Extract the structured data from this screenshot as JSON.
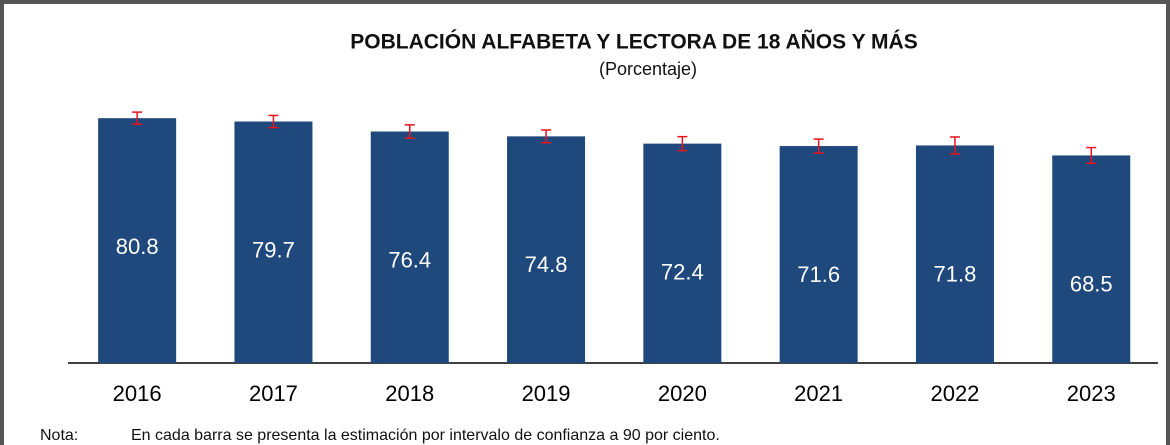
{
  "chart_data": {
    "type": "bar",
    "title": "POBLACIÓN ALFABETA Y LECTORA DE 18 AÑOS Y MÁS",
    "subtitle": "(Porcentaje)",
    "categories": [
      "2016",
      "2017",
      "2018",
      "2019",
      "2020",
      "2021",
      "2022",
      "2023"
    ],
    "values": [
      80.8,
      79.7,
      76.4,
      74.8,
      72.4,
      71.6,
      71.8,
      68.5
    ],
    "errors": [
      2.0,
      2.0,
      2.2,
      2.1,
      2.3,
      2.3,
      2.8,
      2.6
    ],
    "color": "#1f487c",
    "error_color": "#e8141c",
    "note_label": "Nota:",
    "note": "En cada barra se presenta la estimación por intervalo de confianza a 90 por ciento."
  }
}
